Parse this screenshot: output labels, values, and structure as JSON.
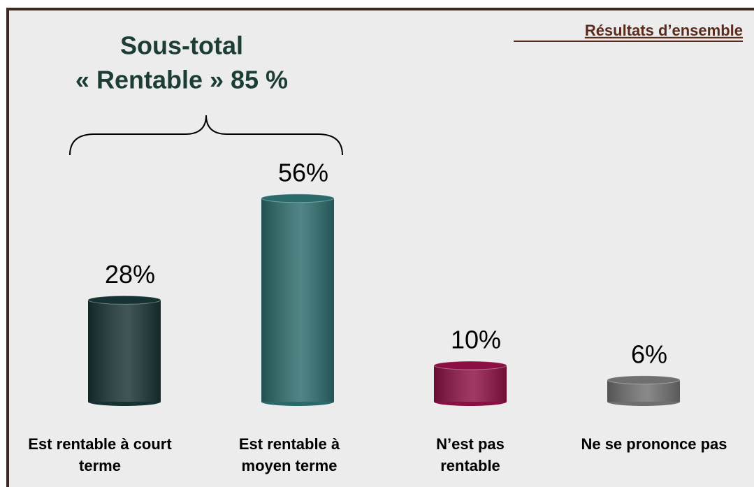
{
  "chart_data": {
    "type": "bar",
    "title": "Résultats d’ensemble",
    "annotation": [
      "Sous-total",
      "« Rentable » 85 %"
    ],
    "categories": [
      "Est rentable à court terme",
      "Est rentable à moyen terme",
      "N’est pas rentable",
      "Ne se prononce pas"
    ],
    "values": [
      28,
      56,
      10,
      6
    ],
    "value_labels": [
      "28%",
      "56%",
      "10%",
      "6%"
    ],
    "colors": [
      "#173232",
      "#2b6a6a",
      "#8c0f43",
      "#6f6f6f"
    ]
  }
}
